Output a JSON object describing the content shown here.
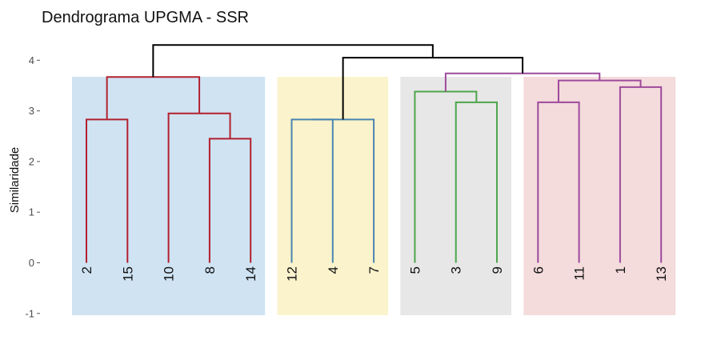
{
  "chart_data": {
    "type": "dendrogram",
    "title": "Dendrograma UPGMA - SSR",
    "ylabel": "Similaridade",
    "ylim": [
      -1,
      4.5
    ],
    "yticks": [
      -1,
      0,
      1,
      2,
      3,
      4
    ],
    "leaf_order": [
      "2",
      "15",
      "10",
      "8",
      "14",
      "12",
      "4",
      "7",
      "5",
      "3",
      "9",
      "6",
      "11",
      "1",
      "13"
    ],
    "clusters": [
      {
        "members": [
          "2",
          "15",
          "10",
          "8",
          "14"
        ],
        "fill": "#cfe3f3",
        "color": "#b2202e"
      },
      {
        "members": [
          "12",
          "4",
          "7"
        ],
        "fill": "#fbf3cc",
        "color": "#4a85b0"
      },
      {
        "members": [
          "5",
          "3",
          "9"
        ],
        "fill": "#e7e7e7",
        "color": "#4da64a"
      },
      {
        "members": [
          "6",
          "11",
          "1",
          "13"
        ],
        "fill": "#f4dbdc",
        "color": "#9d4a9b"
      }
    ],
    "root_color": "#000000",
    "merges": [
      {
        "a": "2",
        "b": "15",
        "height": 2.83,
        "color": "#b2202e"
      },
      {
        "a": "8",
        "b": "14",
        "height": 2.45,
        "color": "#b2202e"
      },
      {
        "a": "10",
        "b": "8+14",
        "height": 2.95,
        "color": "#b2202e"
      },
      {
        "a": "2+15",
        "b": "10+8+14",
        "height": 3.67,
        "color": "#b2202e"
      },
      {
        "a": "12",
        "b": "4",
        "height": 2.83,
        "color": "#4a85b0"
      },
      {
        "a": "12+4",
        "b": "7",
        "height": 2.83,
        "color": "#4a85b0"
      },
      {
        "a": "3",
        "b": "9",
        "height": 3.17,
        "color": "#4da64a"
      },
      {
        "a": "5",
        "b": "3+9",
        "height": 3.38,
        "color": "#4da64a"
      },
      {
        "a": "1",
        "b": "13",
        "height": 3.47,
        "color": "#9d4a9b"
      },
      {
        "a": "6",
        "b": "11",
        "height": 3.17,
        "color": "#9d4a9b"
      },
      {
        "a": "6+11",
        "b": "1+13",
        "height": 3.6,
        "color": "#9d4a9b"
      },
      {
        "a": "5+3+9",
        "b": "6+11+1+13",
        "height": 3.74,
        "color": "#9d4a9b"
      },
      {
        "a": "12+4+7",
        "b": "5+3+9+6+11+1+13",
        "height": 4.05,
        "color": "#000000"
      },
      {
        "a": "2+15+10+8+14",
        "b": "12+4+7+5+3+9+6+11+1+13",
        "height": 4.3,
        "color": "#000000"
      }
    ]
  }
}
